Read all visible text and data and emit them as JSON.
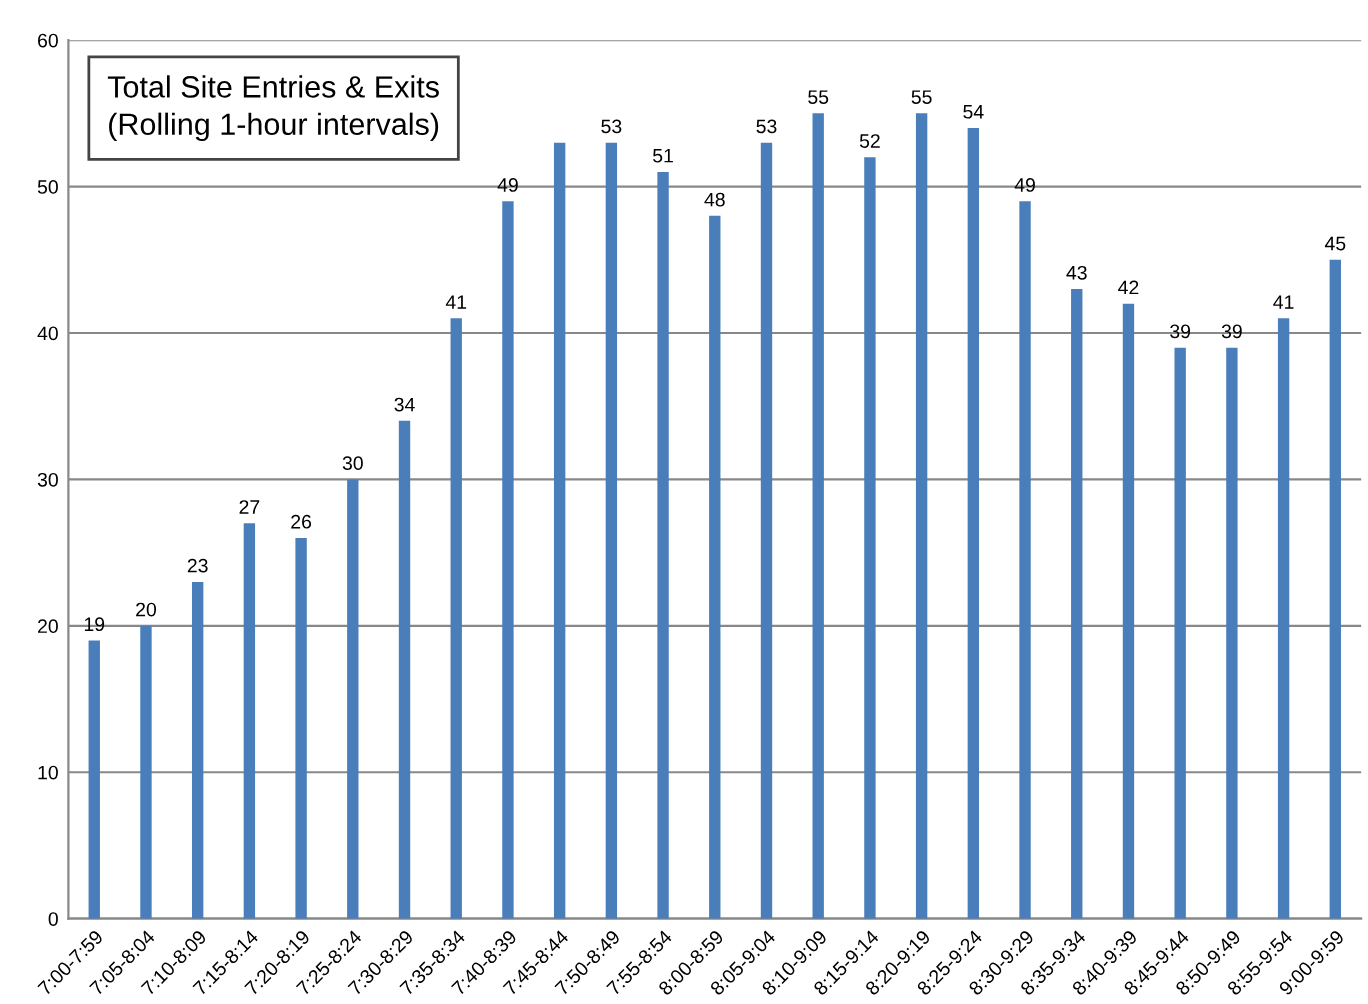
{
  "chart_data": {
    "type": "bar",
    "title": "Total Site Entries & Exits\n(Rolling 1-hour intervals)",
    "categories": [
      "7:00-7:59",
      "7:05-8:04",
      "7:10-8:09",
      "7:15-8:14",
      "7:20-8:19",
      "7:25-8:24",
      "7:30-8:29",
      "7:35-8:34",
      "7:40-8:39",
      "7:45-8:44",
      "7:50-8:49",
      "7:55-8:54",
      "8:00-8:59",
      "8:05-9:04",
      "8:10-9:09",
      "8:15-9:14",
      "8:20-9:19",
      "8:25-9:24",
      "8:30-9:29",
      "8:35-9:34",
      "8:40-9:39",
      "8:45-9:44",
      "8:50-9:49",
      "8:55-9:54",
      "9:00-9:59"
    ],
    "values": [
      19,
      20,
      23,
      27,
      26,
      30,
      34,
      41,
      49,
      53,
      53,
      51,
      48,
      53,
      55,
      52,
      55,
      54,
      49,
      43,
      42,
      39,
      39,
      41,
      45
    ],
    "value_labels": [
      "19",
      "20",
      "23",
      "27",
      "26",
      "30",
      "34",
      "41",
      "49",
      null,
      "53",
      "51",
      "48",
      "53",
      "55",
      "52",
      "55",
      "54",
      "49",
      "43",
      "42",
      "39",
      "39",
      "41",
      "45"
    ],
    "color": "#4a7ebb",
    "ylim": [
      0,
      60
    ],
    "yticks": [
      0,
      10,
      20,
      30,
      40,
      50,
      60
    ],
    "grid": "y",
    "legend": false
  }
}
